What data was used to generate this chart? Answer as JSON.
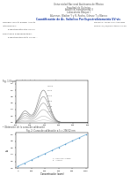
{
  "title_lines": [
    "Universidad Nacional Autónoma de México",
    "Facultad de Química",
    "Analítica Instrumental II",
    "Laboratorio Bloque I",
    "Alumnos: Blaiber Y y R, Rocha, Gámez T y Blanco"
  ],
  "subtitle": "Cuantificación de Ác. Salicílico Por Espectrofotometría UV-vis",
  "left_labels": [
    "Nombre: García Rangel Andrés",
    "",
    "Instrucciones:",
    "  Espectrofotómetro UV-Vis",
    "",
    "Resultados experimentales:",
    "",
    "  Espectrofotometría UV-Vis..."
  ],
  "right_labels": [
    "Docente: Agraz Cris Alvarado",
    "Fecha: 07/04/2024 turno 04:00"
  ],
  "section1_bullet": "•",
  "section1_label": "Espectrofotometría UV-Vis...",
  "section1_fig_title": "Fig. 1) Espectros de las absorbancias programadas",
  "section2_label": "• Obtención de la curva de calibración",
  "section2_fig_title": "Fig. 2: Curva de calibración a λ = 296.02 nm",
  "pdf_bg_color": "#1c3d6b",
  "pdf_text_color": "#ffffff",
  "header_text_color": "#555555",
  "subtitle_color": "#2244aa",
  "body_text_color": "#444444",
  "spectra_colors": [
    "#cccccc",
    "#bbbbbb",
    "#aaaaaa",
    "#999999",
    "#888888",
    "#777777"
  ],
  "calib_line_color": "#88bbdd",
  "calib_dot_color": "#5599cc",
  "page_bg": "#ffffff"
}
